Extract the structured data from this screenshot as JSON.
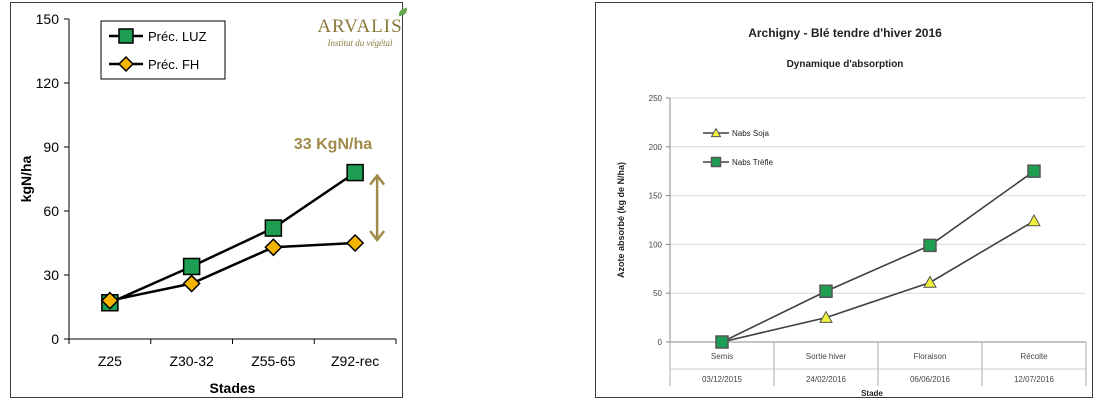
{
  "left_chart": {
    "logo": {
      "name": "ARVALIS",
      "tagline": "Institut du végétal"
    },
    "annotation": "33 KgN/ha",
    "colors": {
      "series1": "#1e9e52",
      "series2": "#f5b400",
      "annotation": "#a08a4a",
      "line": "#000000"
    }
  },
  "right_chart": {
    "colors": {
      "series1": "#f1f13a",
      "series2": "#1e9e52",
      "line": "#404040",
      "grid": "#d9d9d9"
    }
  },
  "chart_data": [
    {
      "type": "line",
      "title": "",
      "categories": [
        "Z25",
        "Z30-32",
        "Z55-65",
        "Z92-rec"
      ],
      "series": [
        {
          "name": "Préc. LUZ",
          "values": [
            17,
            34,
            52,
            78
          ],
          "marker": "square"
        },
        {
          "name": "Préc. FH",
          "values": [
            18,
            26,
            43,
            45
          ],
          "marker": "diamond"
        }
      ],
      "xlabel": "Stades",
      "ylabel": "kgN/ha",
      "ylim": [
        0,
        150
      ],
      "yticks": [
        0,
        30,
        60,
        90,
        120,
        150
      ],
      "grid": false,
      "legend": "top-left"
    },
    {
      "type": "line",
      "title": "Archigny - Blé tendre d'hiver 2016",
      "subtitle": "Dynamique d'absorption",
      "categories": [
        "Semis",
        "Sortie hiver",
        "Floraison",
        "Récolte"
      ],
      "category_dates": [
        "03/12/2015",
        "24/02/2016",
        "06/06/2016",
        "12/07/2016"
      ],
      "series": [
        {
          "name": "Nabs Soja",
          "values": [
            0,
            25,
            61,
            124
          ],
          "marker": "triangle"
        },
        {
          "name": "Nabs Trèfle",
          "values": [
            0,
            52,
            99,
            175
          ],
          "marker": "square"
        }
      ],
      "xlabel": "Stade",
      "ylabel": "Azote absorbé (kg de N/ha)",
      "ylim": [
        0,
        250
      ],
      "yticks": [
        0,
        50,
        100,
        150,
        200,
        250
      ],
      "grid": true,
      "legend": "top-left"
    }
  ]
}
